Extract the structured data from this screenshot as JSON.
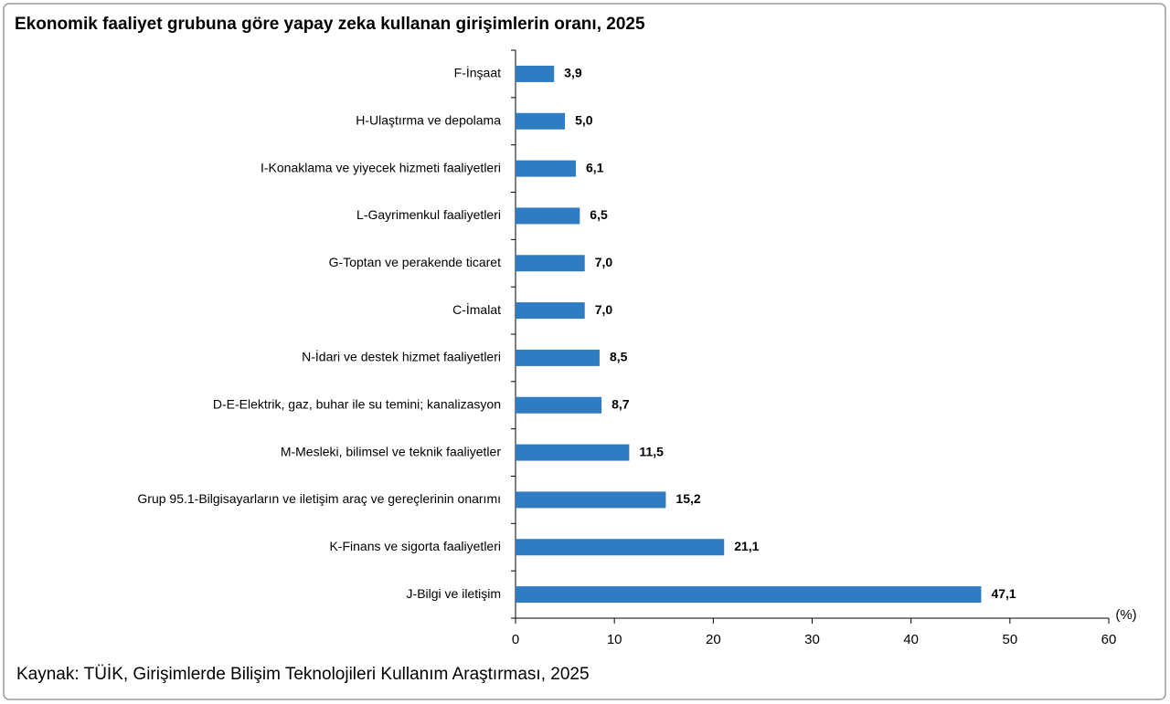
{
  "chart_data": {
    "type": "bar",
    "orientation": "horizontal",
    "title": "Ekonomik faaliyet grubuna göre yapay zeka kullanan girişimlerin oranı, 2025",
    "categories": [
      "F-İnşaat",
      "H-Ulaştırma ve depolama",
      "I-Konaklama ve yiyecek hizmeti faaliyetleri",
      "L-Gayrimenkul faaliyetleri",
      "G-Toptan ve perakende ticaret",
      "C-İmalat",
      "N-İdari ve destek hizmet faaliyetleri",
      "D-E-Elektrik, gaz, buhar ile su temini; kanalizasyon",
      "M-Mesleki, bilimsel ve teknik faaliyetler",
      "Grup 95.1-Bilgisayarların ve iletişim araç ve gereçlerinin onarımı",
      "K-Finans ve sigorta faaliyetleri",
      "J-Bilgi ve iletişim"
    ],
    "values": [
      3.9,
      5.0,
      6.1,
      6.5,
      7.0,
      7.0,
      8.5,
      8.7,
      11.5,
      15.2,
      21.1,
      47.1
    ],
    "value_labels": [
      "3,9",
      "5,0",
      "6,1",
      "6,5",
      "7,0",
      "7,0",
      "8,5",
      "8,7",
      "11,5",
      "15,2",
      "21,1",
      "47,1"
    ],
    "color": "#2f7cc3",
    "xlim": [
      0,
      60
    ],
    "xticks": [
      0,
      10,
      20,
      30,
      40,
      50,
      60
    ],
    "x_unit": "(%)",
    "source": "Kaynak: TÜİK, Girişimlerde Bilişim Teknolojileri Kullanım Araştırması, 2025"
  }
}
